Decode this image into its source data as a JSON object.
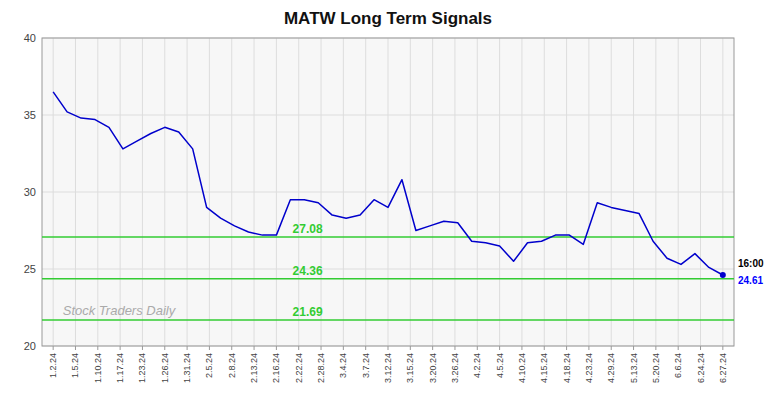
{
  "chart_data": {
    "type": "line",
    "title": "MATW Long Term Signals",
    "color": "#0000cc",
    "x": [
      0,
      0.625,
      1.25,
      1.875,
      2.5,
      3.125,
      3.75,
      4.375,
      5,
      5.625,
      6.25,
      6.875,
      7.5,
      8.125,
      8.75,
      9.375,
      10,
      10.625,
      11.25,
      11.875,
      12.5,
      13.125,
      13.75,
      14.375,
      15,
      15.625,
      16.25,
      16.875,
      17.5,
      18.125,
      18.75,
      19.375,
      20,
      20.625,
      21.25,
      21.875,
      22.5,
      23.125,
      23.75,
      24.375,
      25,
      25.625,
      26.25,
      26.875,
      27.5,
      28.125,
      28.75,
      29.375,
      30
    ],
    "values": [
      36.5,
      35.2,
      34.8,
      34.7,
      34.2,
      32.8,
      33.3,
      33.8,
      34.2,
      33.9,
      32.8,
      29.0,
      28.3,
      27.8,
      27.4,
      27.2,
      27.2,
      29.5,
      29.5,
      29.3,
      28.5,
      28.3,
      28.5,
      29.5,
      29.0,
      30.8,
      27.5,
      27.8,
      28.1,
      28.0,
      26.8,
      26.7,
      26.5,
      25.5,
      26.7,
      26.8,
      27.2,
      27.2,
      26.6,
      29.3,
      29.0,
      28.8,
      28.6,
      26.8,
      25.7,
      25.3,
      26.0,
      25.1,
      24.61
    ],
    "xlim": [
      -0.5,
      30.5
    ],
    "xticks": [
      {
        "value": 0,
        "label": "1.2.24"
      },
      {
        "value": 1,
        "label": "1.5.24"
      },
      {
        "value": 2,
        "label": "1.10.24"
      },
      {
        "value": 3,
        "label": "1.17.24"
      },
      {
        "value": 4,
        "label": "1.23.24"
      },
      {
        "value": 5,
        "label": "1.26.24"
      },
      {
        "value": 6,
        "label": "1.31.24"
      },
      {
        "value": 7,
        "label": "2.5.24"
      },
      {
        "value": 8,
        "label": "2.8.24"
      },
      {
        "value": 9,
        "label": "2.13.24"
      },
      {
        "value": 10,
        "label": "2.16.24"
      },
      {
        "value": 11,
        "label": "2.22.24"
      },
      {
        "value": 12,
        "label": "2.28.24"
      },
      {
        "value": 13,
        "label": "3.4.24"
      },
      {
        "value": 14,
        "label": "3.7.24"
      },
      {
        "value": 15,
        "label": "3.12.24"
      },
      {
        "value": 16,
        "label": "3.15.24"
      },
      {
        "value": 17,
        "label": "3.20.24"
      },
      {
        "value": 18,
        "label": "3.26.24"
      },
      {
        "value": 19,
        "label": "4.2.24"
      },
      {
        "value": 20,
        "label": "4.5.24"
      },
      {
        "value": 21,
        "label": "4.10.24"
      },
      {
        "value": 22,
        "label": "4.15.24"
      },
      {
        "value": 23,
        "label": "4.18.24"
      },
      {
        "value": 24,
        "label": "4.23.24"
      },
      {
        "value": 25,
        "label": "4.29.24"
      },
      {
        "value": 26,
        "label": "5.13.24"
      },
      {
        "value": 27,
        "label": "5.20.24"
      },
      {
        "value": 28,
        "label": "6.6.24"
      },
      {
        "value": 29,
        "label": "6.24.24"
      },
      {
        "value": 30,
        "label": "6.27.24"
      }
    ],
    "ylim": [
      20,
      40
    ],
    "yticks": [
      20,
      25,
      30,
      35,
      40
    ],
    "grid": true,
    "hlines": [
      {
        "value": 27.08,
        "label": "27.08",
        "color": "#33cc33"
      },
      {
        "value": 24.36,
        "label": "24.36",
        "color": "#33cc33"
      },
      {
        "value": 21.69,
        "label": "21.69",
        "color": "#33cc33"
      }
    ],
    "watermark": "Stock Traders Daily",
    "last_label": {
      "time": "16:00",
      "price": "24.61",
      "color": "#0000ff"
    }
  }
}
